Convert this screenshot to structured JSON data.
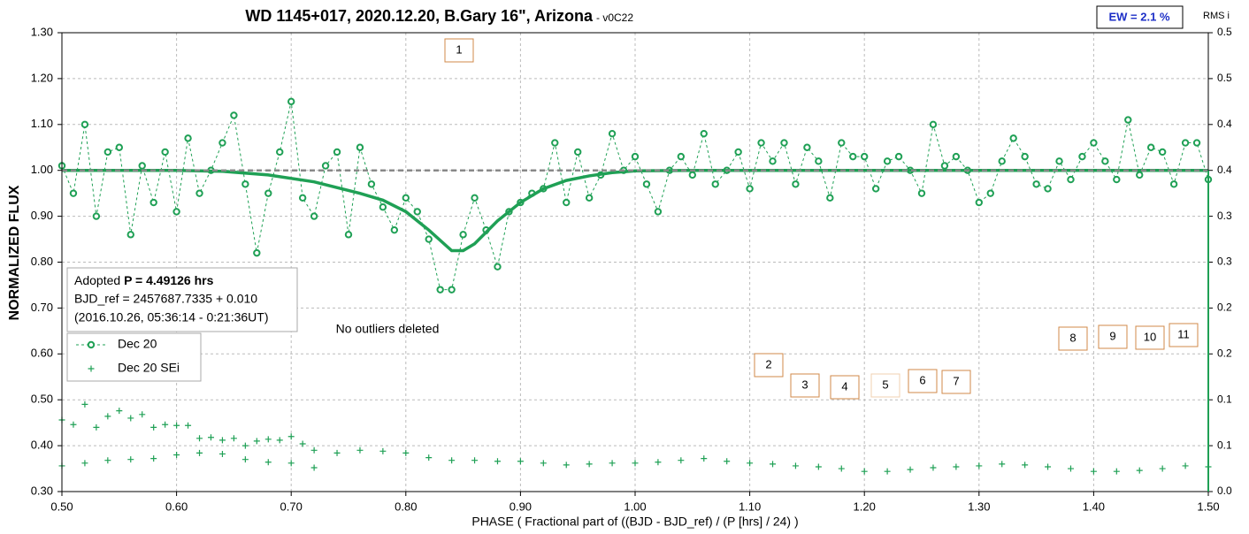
{
  "chart_data": {
    "type": "scatter",
    "title": "WD 1145+017, 2020.12.20, B.Gary 16\", Arizona",
    "subtitle": " - v0C22",
    "badge": "EW = 2.1 %",
    "xlabel": "PHASE ( Fractional part of ((BJD - BJD_ref) / (P [hrs] / 24) )",
    "ylabel": "NORMALIZED FLUX",
    "y2label": "RMS i",
    "info": {
      "prefix": "Adopted ",
      "period": "P = 4.49126 hrs",
      "bjd": "BJD_ref = 2457687.7335 + 0.010",
      "date": "(2016.10.26, 05:36:14 - 0:21:36UT)"
    },
    "annotations": [
      "No outliers deleted",
      "1",
      "2",
      "3",
      "4",
      "5",
      "6",
      "7",
      "8",
      "9",
      "10",
      "11"
    ],
    "xlim": [
      0.5,
      1.5
    ],
    "xticks": [
      {
        "value": 0.5,
        "label": "0.50"
      },
      {
        "value": 0.6,
        "label": "0.60"
      },
      {
        "value": 0.7,
        "label": "0.70"
      },
      {
        "value": 0.8,
        "label": "0.80"
      },
      {
        "value": 0.9,
        "label": "0.90"
      },
      {
        "value": 1.0,
        "label": "1.00"
      },
      {
        "value": 1.1,
        "label": "1.10"
      },
      {
        "value": 1.2,
        "label": "1.20"
      },
      {
        "value": 1.3,
        "label": "1.30"
      },
      {
        "value": 1.4,
        "label": "1.40"
      },
      {
        "value": 1.5,
        "label": "1.50"
      }
    ],
    "ylim": [
      0.3,
      1.3
    ],
    "yticks": [
      {
        "value": 0.3,
        "label": "0.30"
      },
      {
        "value": 0.4,
        "label": "0.40"
      },
      {
        "value": 0.5,
        "label": "0.50"
      },
      {
        "value": 0.6,
        "label": "0.60"
      },
      {
        "value": 0.7,
        "label": "0.70"
      },
      {
        "value": 0.8,
        "label": "0.80"
      },
      {
        "value": 0.9,
        "label": "0.90"
      },
      {
        "value": 1.0,
        "label": "1.00"
      },
      {
        "value": 1.1,
        "label": "1.10"
      },
      {
        "value": 1.2,
        "label": "1.20"
      },
      {
        "value": 1.3,
        "label": "1.30"
      }
    ],
    "y2lim": [
      0,
      0.5
    ],
    "y2ticks": [
      {
        "value": 0,
        "label": "0.0"
      },
      {
        "value": 0.05,
        "label": "0.1"
      },
      {
        "value": 0.1,
        "label": "0.1"
      },
      {
        "value": 0.15,
        "label": "0.2"
      },
      {
        "value": 0.2,
        "label": "0.2"
      },
      {
        "value": 0.25,
        "label": "0.3"
      },
      {
        "value": 0.3,
        "label": "0.3"
      },
      {
        "value": 0.35,
        "label": "0.4"
      },
      {
        "value": 0.4,
        "label": "0.4"
      },
      {
        "value": 0.45,
        "label": "0.5"
      },
      {
        "value": 0.5,
        "label": "0.5"
      }
    ],
    "grid": true,
    "series": [
      {
        "name": "Dec 20",
        "color": "#1fa055",
        "marker": "circle",
        "line": "dashed",
        "x": [
          0.5,
          0.51,
          0.52,
          0.53,
          0.54,
          0.55,
          0.56,
          0.57,
          0.58,
          0.59,
          0.6,
          0.61,
          0.62,
          0.63,
          0.64,
          0.65,
          0.66,
          0.67,
          0.68,
          0.69,
          0.7,
          0.71,
          0.72,
          0.73,
          0.74,
          0.75,
          0.76,
          0.77,
          0.78,
          0.79,
          0.8,
          0.81,
          0.82,
          0.83,
          0.84,
          0.85,
          0.86,
          0.87,
          0.88,
          0.89,
          0.9,
          0.91,
          0.92,
          0.93,
          0.94,
          0.95,
          0.96,
          0.97,
          0.98,
          0.99,
          1.0,
          1.01,
          1.02,
          1.03,
          1.04,
          1.05,
          1.06,
          1.07,
          1.08,
          1.09,
          1.1,
          1.11,
          1.12,
          1.13,
          1.14,
          1.15,
          1.16,
          1.17,
          1.18,
          1.19,
          1.2,
          1.21,
          1.22,
          1.23,
          1.24,
          1.25,
          1.26,
          1.27,
          1.28,
          1.29,
          1.3,
          1.31,
          1.32,
          1.33,
          1.34,
          1.35,
          1.36,
          1.37,
          1.38,
          1.39,
          1.4,
          1.41,
          1.42,
          1.43,
          1.44,
          1.45,
          1.46,
          1.47,
          1.48,
          1.49,
          1.5
        ],
        "values": [
          1.01,
          0.95,
          1.1,
          0.9,
          1.04,
          1.05,
          0.86,
          1.01,
          0.93,
          1.04,
          0.91,
          1.07,
          0.95,
          1.0,
          1.06,
          1.12,
          0.97,
          0.82,
          0.95,
          1.04,
          1.15,
          0.94,
          0.9,
          1.01,
          1.04,
          0.86,
          1.05,
          0.97,
          0.92,
          0.87,
          0.94,
          0.91,
          0.85,
          0.74,
          0.74,
          0.86,
          0.94,
          0.87,
          0.79,
          0.91,
          0.93,
          0.95,
          0.96,
          1.06,
          0.93,
          1.04,
          0.94,
          0.99,
          1.08,
          1.0,
          1.03,
          0.97,
          0.91,
          1.0,
          1.03,
          0.99,
          1.08,
          0.97,
          1.0,
          1.04,
          0.96,
          1.06,
          1.02,
          1.06,
          0.97,
          1.05,
          1.02,
          0.94,
          1.06,
          1.03,
          1.03,
          0.96,
          1.02,
          1.03,
          1.0,
          0.95,
          1.1,
          1.01,
          1.03,
          1.0,
          0.93,
          0.95,
          1.02,
          1.07,
          1.03,
          0.97,
          0.96,
          1.02,
          0.98,
          1.03,
          1.06,
          1.02,
          0.98,
          1.11,
          0.99,
          1.05,
          1.04,
          0.97,
          1.06,
          1.06,
          0.98
        ]
      },
      {
        "name": "Dec 20 SEi",
        "color": "#1fa055",
        "marker": "plus",
        "axis": "y2",
        "x": [
          0.5,
          0.52,
          0.54,
          0.56,
          0.58,
          0.6,
          0.62,
          0.64,
          0.66,
          0.68,
          0.7,
          0.72,
          0.74,
          0.76,
          0.78,
          0.8,
          0.82,
          0.84,
          0.86,
          0.88,
          0.9,
          0.92,
          0.94,
          0.96,
          0.98,
          1.0,
          1.02,
          1.04,
          1.06,
          1.08,
          1.1,
          1.12,
          1.14,
          1.16,
          1.18,
          1.2,
          1.22,
          1.24,
          1.26,
          1.28,
          1.3,
          1.32,
          1.34,
          1.36,
          1.38,
          1.4,
          1.42,
          1.44,
          1.46,
          1.48,
          1.5,
          0.5,
          0.51,
          0.52,
          0.53,
          0.54,
          0.55,
          0.56,
          0.57,
          0.58,
          0.59,
          0.6,
          0.61,
          0.62,
          0.63,
          0.64,
          0.65,
          0.66,
          0.67,
          0.68,
          0.69,
          0.7,
          0.71,
          0.72
        ],
        "values": [
          0.028,
          0.031,
          0.034,
          0.035,
          0.036,
          0.04,
          0.042,
          0.041,
          0.035,
          0.032,
          0.031,
          0.026,
          0.042,
          0.045,
          0.044,
          0.042,
          0.037,
          0.034,
          0.034,
          0.033,
          0.033,
          0.031,
          0.029,
          0.03,
          0.031,
          0.031,
          0.032,
          0.034,
          0.036,
          0.033,
          0.031,
          0.03,
          0.028,
          0.027,
          0.025,
          0.022,
          0.022,
          0.024,
          0.026,
          0.027,
          0.028,
          0.03,
          0.029,
          0.027,
          0.025,
          0.022,
          0.022,
          0.023,
          0.025,
          0.028,
          0.027,
          0.078,
          0.073,
          0.095,
          0.07,
          0.082,
          0.088,
          0.08,
          0.084,
          0.07,
          0.073,
          0.072,
          0.072,
          0.058,
          0.059,
          0.056,
          0.058,
          0.05,
          0.055,
          0.057,
          0.056,
          0.06,
          0.052,
          0.045
        ]
      },
      {
        "color": "#1fa055",
        "line": "solid",
        "x": [
          0.5,
          0.6,
          0.64,
          0.68,
          0.72,
          0.76,
          0.78,
          0.8,
          0.82,
          0.84,
          0.85,
          0.86,
          0.88,
          0.9,
          0.92,
          0.94,
          0.96,
          0.98,
          1.0,
          1.05,
          1.5
        ],
        "values": [
          1.0,
          1.0,
          0.998,
          0.99,
          0.975,
          0.95,
          0.935,
          0.91,
          0.87,
          0.825,
          0.825,
          0.84,
          0.89,
          0.93,
          0.96,
          0.978,
          0.988,
          0.995,
          0.999,
          1.0,
          1.0
        ]
      },
      {
        "color": "#888888",
        "line": "dashed-thick",
        "x": [
          0.5,
          1.5
        ],
        "values": [
          1.0,
          1.0
        ]
      }
    ]
  }
}
